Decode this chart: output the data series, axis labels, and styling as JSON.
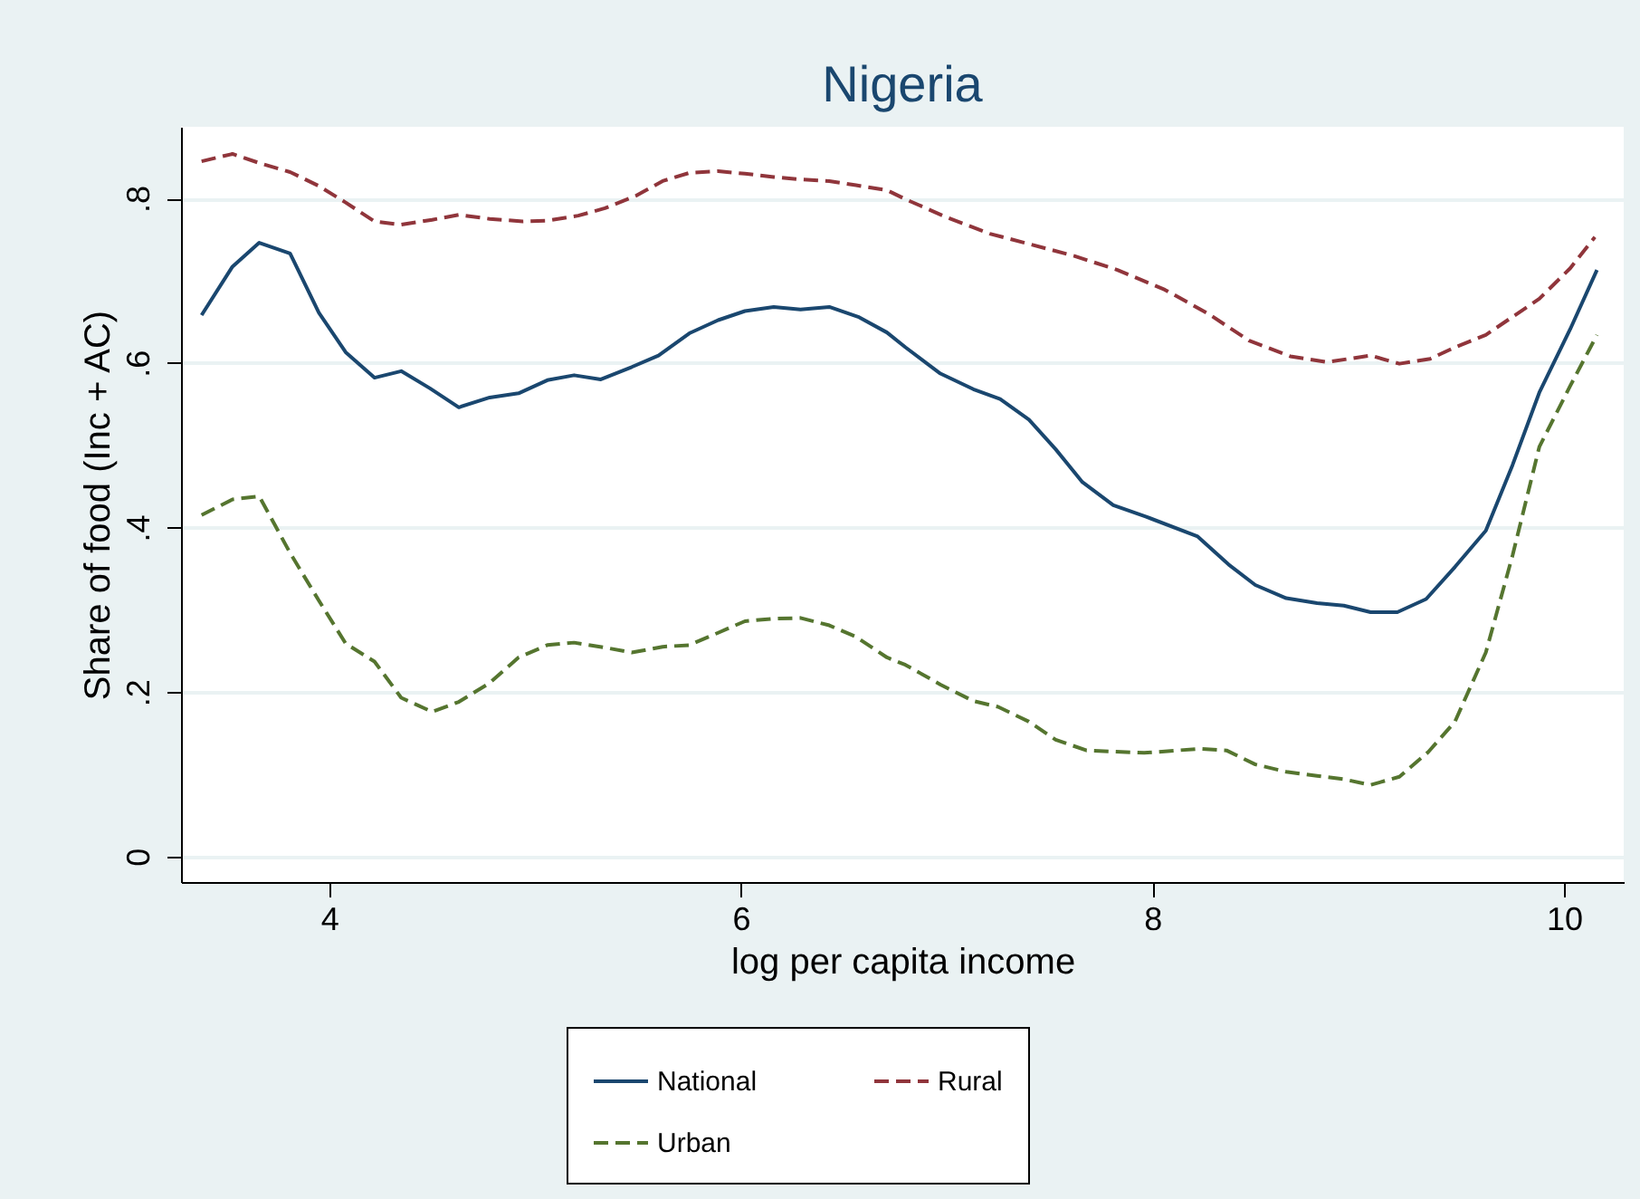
{
  "chart_data": {
    "type": "line",
    "title": "Nigeria",
    "xlabel": "log per capita income",
    "ylabel": "Share of food (Inc + AC)",
    "xlim": [
      3.28,
      10.29
    ],
    "ylim": [
      -0.031,
      0.887
    ],
    "xticks": [
      4,
      6,
      8,
      10
    ],
    "yticks": [
      0,
      {
        "value": 0.2,
        "label": ".2"
      },
      {
        "value": 0.4,
        "label": ".4"
      },
      {
        "value": 0.6,
        "label": ".6"
      },
      {
        "value": 0.8,
        "label": ".8"
      }
    ],
    "grid": "y",
    "legend": "bottom",
    "series": [
      {
        "name": "National",
        "color": "#1a476f",
        "line_style": "solid",
        "x": [
          3.38,
          3.53,
          3.66,
          3.81,
          3.95,
          4.08,
          4.22,
          4.35,
          4.49,
          4.63,
          4.78,
          4.92,
          5.06,
          5.19,
          5.32,
          5.47,
          5.6,
          5.75,
          5.89,
          6.02,
          6.16,
          6.29,
          6.43,
          6.57,
          6.71,
          6.8,
          6.97,
          7.13,
          7.26,
          7.4,
          7.53,
          7.66,
          7.81,
          7.97,
          8.22,
          8.37,
          8.5,
          8.65,
          8.8,
          8.93,
          9.06,
          9.19,
          9.33,
          9.47,
          9.62,
          9.75,
          9.88,
          10.03,
          10.16
        ],
        "values": [
          0.658,
          0.717,
          0.746,
          0.733,
          0.661,
          0.613,
          0.582,
          0.59,
          0.569,
          0.546,
          0.558,
          0.563,
          0.579,
          0.585,
          0.58,
          0.595,
          0.609,
          0.636,
          0.652,
          0.663,
          0.668,
          0.665,
          0.668,
          0.656,
          0.637,
          0.619,
          0.587,
          0.568,
          0.556,
          0.531,
          0.495,
          0.455,
          0.427,
          0.413,
          0.389,
          0.355,
          0.33,
          0.314,
          0.308,
          0.305,
          0.297,
          0.297,
          0.313,
          0.352,
          0.396,
          0.476,
          0.564,
          0.641,
          0.713
        ]
      },
      {
        "name": "Rural",
        "color": "#90353b",
        "line_style": "dashed",
        "x": [
          3.38,
          3.53,
          3.66,
          3.81,
          3.95,
          4.08,
          4.22,
          4.35,
          4.5,
          4.63,
          4.78,
          4.94,
          5.06,
          5.21,
          5.34,
          5.49,
          5.62,
          5.75,
          5.89,
          6.02,
          6.16,
          6.29,
          6.43,
          6.56,
          6.71,
          6.8,
          7.0,
          7.21,
          7.41,
          7.62,
          7.83,
          8.06,
          8.27,
          8.47,
          8.67,
          8.85,
          9.06,
          9.2,
          9.35,
          9.47,
          9.62,
          9.75,
          9.88,
          10.03,
          10.15
        ],
        "values": [
          0.845,
          0.854,
          0.843,
          0.832,
          0.815,
          0.795,
          0.772,
          0.768,
          0.774,
          0.78,
          0.775,
          0.772,
          0.773,
          0.779,
          0.788,
          0.803,
          0.821,
          0.831,
          0.833,
          0.83,
          0.826,
          0.823,
          0.821,
          0.816,
          0.81,
          0.799,
          0.777,
          0.757,
          0.744,
          0.73,
          0.713,
          0.689,
          0.66,
          0.627,
          0.608,
          0.601,
          0.609,
          0.599,
          0.605,
          0.619,
          0.634,
          0.656,
          0.678,
          0.715,
          0.753
        ]
      },
      {
        "name": "Urban",
        "color": "#55752f",
        "line_style": "dashed",
        "x": [
          3.38,
          3.53,
          3.66,
          3.81,
          3.95,
          4.08,
          4.22,
          4.35,
          4.5,
          4.63,
          4.78,
          4.92,
          5.06,
          5.19,
          5.34,
          5.47,
          5.62,
          5.75,
          5.89,
          6.02,
          6.15,
          6.29,
          6.43,
          6.56,
          6.71,
          6.8,
          6.97,
          7.13,
          7.25,
          7.4,
          7.53,
          7.68,
          7.96,
          8.23,
          8.36,
          8.5,
          8.65,
          8.8,
          8.93,
          9.06,
          9.2,
          9.34,
          9.47,
          9.62,
          9.75,
          9.88,
          10.03,
          10.16
        ],
        "values": [
          0.415,
          0.434,
          0.438,
          0.369,
          0.311,
          0.259,
          0.237,
          0.193,
          0.176,
          0.188,
          0.211,
          0.242,
          0.257,
          0.26,
          0.254,
          0.248,
          0.255,
          0.257,
          0.272,
          0.286,
          0.289,
          0.29,
          0.281,
          0.267,
          0.242,
          0.233,
          0.209,
          0.189,
          0.182,
          0.164,
          0.142,
          0.129,
          0.126,
          0.131,
          0.129,
          0.112,
          0.103,
          0.098,
          0.094,
          0.087,
          0.097,
          0.127,
          0.164,
          0.248,
          0.366,
          0.498,
          0.572,
          0.634
        ]
      }
    ]
  }
}
